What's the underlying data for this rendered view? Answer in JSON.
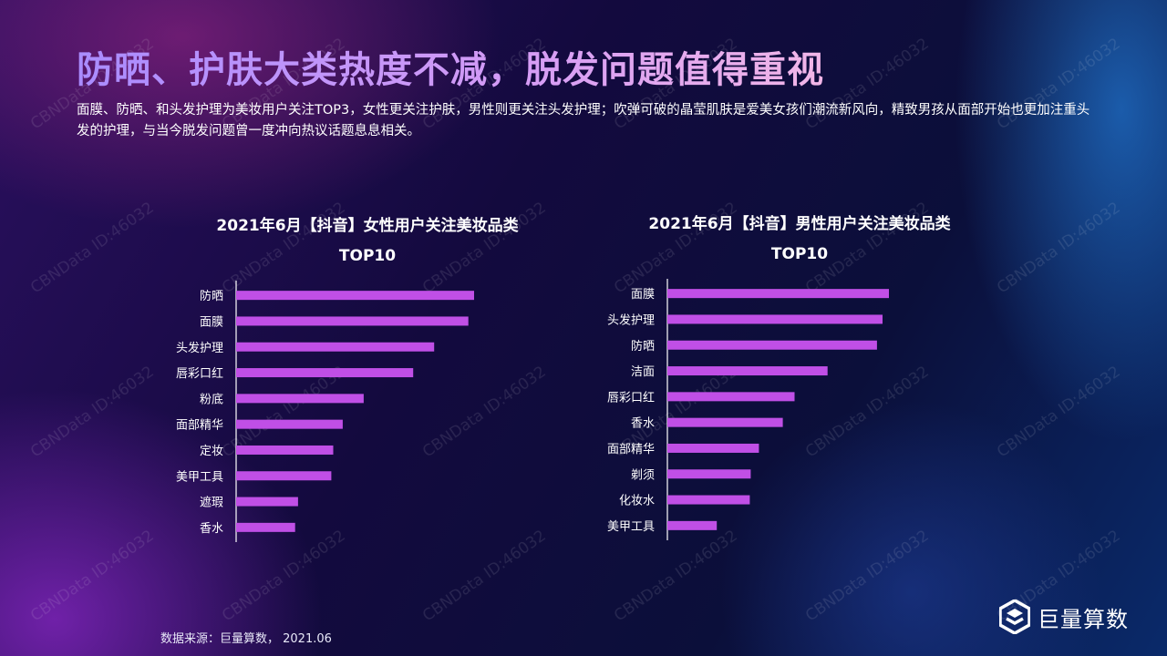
{
  "title": "防晒、护肤大类热度不减，脱发问题值得重视",
  "description": "面膜、防晒、和头发护理为美妆用户关注TOP3，女性更关注护肤，男性则更关注头发护理；吹弹可破的晶莹肌肤是爱美女孩们潮流新风向，精致男孩从面部开始也更加注重头发的护理，与当今脱发问题曾一度冲向热议话题息息相关。",
  "watermark": "CBNData ID:46032",
  "source": "数据来源：巨量算数， 2021.06",
  "logo": {
    "text": "巨量算数",
    "icon": "juliang-logo-icon"
  },
  "colors": {
    "bar": "#c04fe6",
    "axis": "#ffffff"
  },
  "chart_data": [
    {
      "type": "bar",
      "orientation": "horizontal",
      "title_line1": "2021年6月【抖音】女性用户关注美妆品类",
      "title_line2": "TOP10",
      "categories": [
        "防晒",
        "面膜",
        "头发护理",
        "唇彩口红",
        "粉底",
        "面部精华",
        "定妆",
        "美甲工具",
        "遮瑕",
        "香水"
      ],
      "values": [
        100,
        97.6,
        83.2,
        74.4,
        53.6,
        44.8,
        40.8,
        40,
        26,
        24.8
      ],
      "xlim": [
        0,
        100
      ]
    },
    {
      "type": "bar",
      "orientation": "horizontal",
      "title_line1": "2021年6月【抖音】男性用户关注美妆品类",
      "title_line2": "TOP10",
      "categories": [
        "面膜",
        "头发护理",
        "防晒",
        "洁面",
        "唇彩口红",
        "香水",
        "面部精华",
        "剃须",
        "化妆水",
        "美甲工具"
      ],
      "values": [
        100,
        97.1,
        94.6,
        72.3,
        57.4,
        52.1,
        41.3,
        37.6,
        37.2,
        22.3
      ],
      "xlim": [
        0,
        100
      ]
    }
  ]
}
